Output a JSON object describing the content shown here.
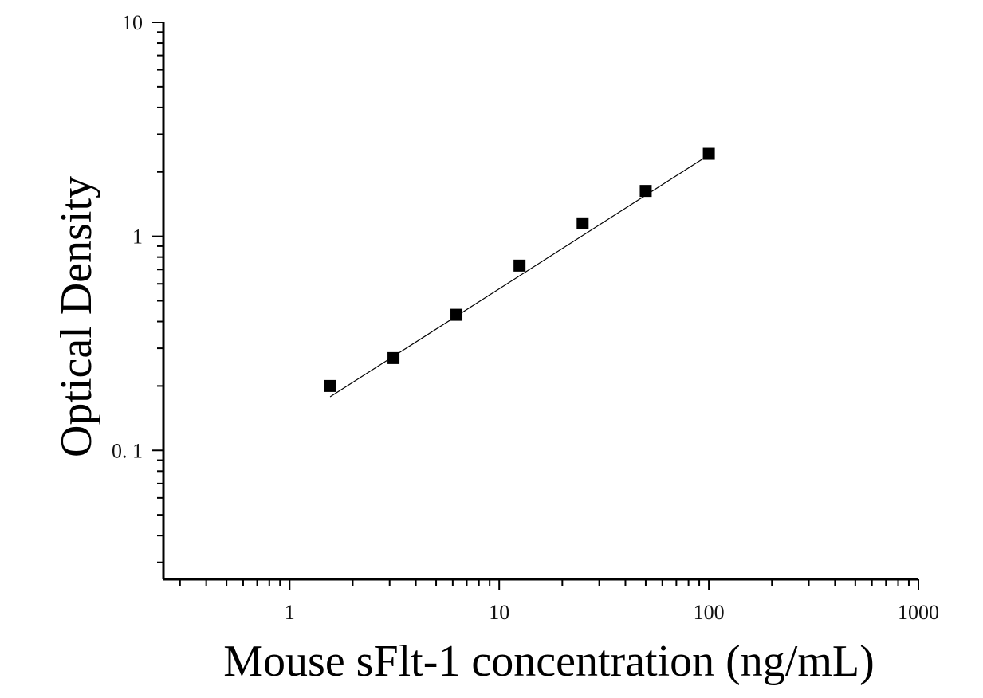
{
  "chart_data": {
    "type": "scatter",
    "title": "",
    "xlabel": "Mouse sFlt-1 concentration (ng/mL)",
    "ylabel": "Optical Density",
    "xscale": "log",
    "yscale": "log",
    "xlim": [
      0.25,
      1000
    ],
    "ylim": [
      0.025,
      10
    ],
    "x_tick_labels": [
      "1",
      "10",
      "100",
      "1000"
    ],
    "y_tick_labels": [
      "10",
      "1",
      "0. 1"
    ],
    "x_ticks": [
      1,
      10,
      100,
      1000
    ],
    "y_ticks": [
      10,
      1,
      0.1
    ],
    "grid": false,
    "legend": "none",
    "series": [
      {
        "marker": "square",
        "color": "#000000",
        "x": [
          1.56,
          3.13,
          6.25,
          12.5,
          25,
          50,
          100
        ],
        "y": [
          0.2,
          0.27,
          0.43,
          0.73,
          1.15,
          1.63,
          2.43
        ]
      }
    ],
    "fit_line": {
      "color": "#000000",
      "x": [
        1.56,
        100
      ],
      "y": [
        0.178,
        2.4
      ]
    }
  }
}
